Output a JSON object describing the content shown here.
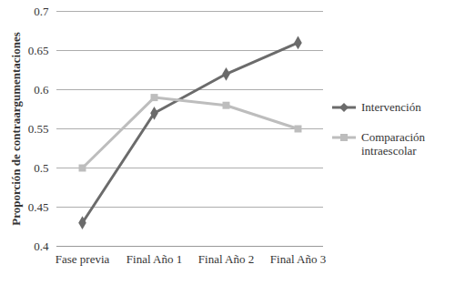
{
  "chart_data": {
    "type": "line",
    "ylabel": "Proporción de contraargumentaciones",
    "categories": [
      "Fase previa",
      "Final Año 1",
      "Final Año 2",
      "Final Año 3"
    ],
    "series": [
      {
        "name": "Intervención",
        "color": "#6b6b6b",
        "marker": "diamond",
        "values": [
          0.43,
          0.57,
          0.62,
          0.66
        ]
      },
      {
        "name": "Comparación intraescolar",
        "color": "#bdbdbd",
        "marker": "square",
        "values": [
          0.5,
          0.59,
          0.58,
          0.55
        ]
      }
    ],
    "ylim": [
      0.4,
      0.7
    ],
    "yticks": [
      0.4,
      0.45,
      0.5,
      0.55,
      0.6,
      0.65,
      0.7
    ],
    "grid": true,
    "legend": "right"
  }
}
